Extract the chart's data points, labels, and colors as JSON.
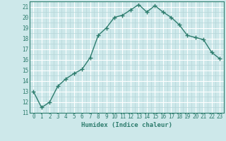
{
  "x": [
    0,
    1,
    2,
    3,
    4,
    5,
    6,
    7,
    8,
    9,
    10,
    11,
    12,
    13,
    14,
    15,
    16,
    17,
    18,
    19,
    20,
    21,
    22,
    23
  ],
  "y": [
    13,
    11.5,
    12,
    13.5,
    14.2,
    14.7,
    15.1,
    16.2,
    18.3,
    19,
    20,
    20.2,
    20.7,
    21.2,
    20.5,
    21.1,
    20.5,
    20,
    19.3,
    18.3,
    18.1,
    17.9,
    16.7,
    16.1
  ],
  "line_color": "#2e7d6e",
  "marker": "+",
  "marker_size": 4,
  "marker_lw": 1.0,
  "line_width": 1.0,
  "bg_color": "#cde8ea",
  "grid_major_color": "#ffffff",
  "grid_minor_color": "#b5d5d8",
  "xlabel": "Humidex (Indice chaleur)",
  "xlim": [
    -0.5,
    23.5
  ],
  "ylim": [
    11,
    21.5
  ],
  "yticks": [
    11,
    12,
    13,
    14,
    15,
    16,
    17,
    18,
    19,
    20,
    21
  ],
  "xticks": [
    0,
    1,
    2,
    3,
    4,
    5,
    6,
    7,
    8,
    9,
    10,
    11,
    12,
    13,
    14,
    15,
    16,
    17,
    18,
    19,
    20,
    21,
    22,
    23
  ],
  "tick_fontsize": 5.5,
  "label_fontsize": 6.5,
  "tick_color": "#2e7d6e",
  "label_color": "#2e7d6e"
}
